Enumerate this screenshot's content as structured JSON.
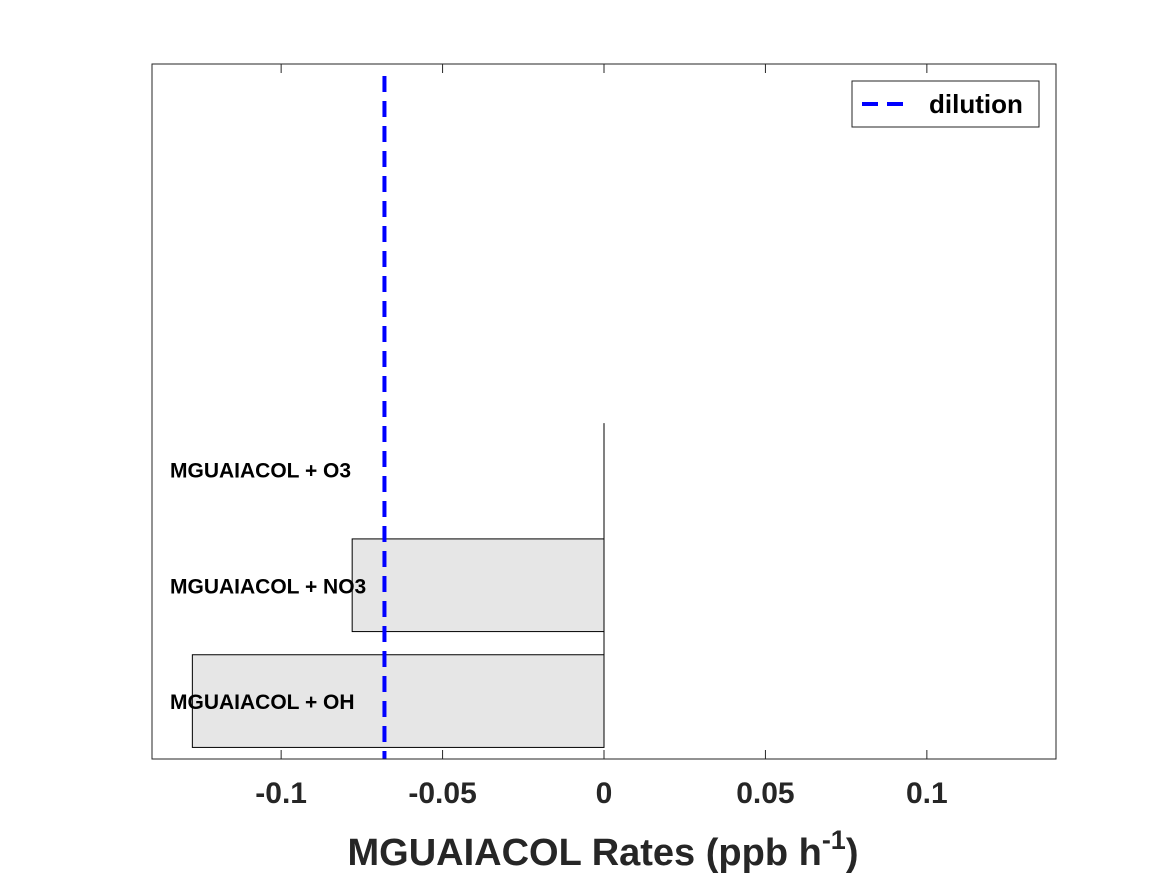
{
  "chart_data": {
    "type": "bar",
    "orientation": "horizontal",
    "categories": [
      "MGUAIACOL + OH",
      "MGUAIACOL + NO3",
      "MGUAIACOL + O3"
    ],
    "values": [
      -0.1275,
      -0.078,
      0.0
    ],
    "bar_color": "#e6e6e6",
    "xlabel": {
      "main": "MGUAIACOL Rates (ppb h",
      "sup": "-1",
      "close": ")"
    },
    "xlim": [
      -0.14,
      0.14
    ],
    "xticks": [
      -0.1,
      -0.05,
      0,
      0.05,
      0.1
    ],
    "xtick_labels": [
      "-0.1",
      "-0.05",
      "0",
      "0.05",
      "0.1"
    ],
    "category_slots": 6,
    "reference_line": {
      "name": "dilution",
      "x": -0.068,
      "color": "#0000ff",
      "style": "dashed"
    },
    "legend": {
      "position": "top-right",
      "entries": [
        "dilution"
      ]
    }
  }
}
